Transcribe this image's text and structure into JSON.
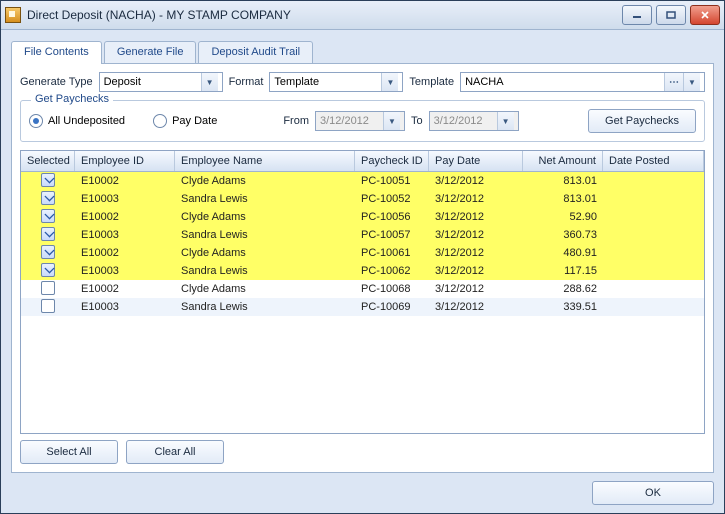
{
  "window": {
    "title": "Direct Deposit (NACHA) - MY STAMP COMPANY"
  },
  "tabs": [
    {
      "label": "File Contents",
      "active": true
    },
    {
      "label": "Generate File",
      "active": false
    },
    {
      "label": "Deposit Audit Trail",
      "active": false
    }
  ],
  "form": {
    "genTypeLabel": "Generate Type",
    "genTypeValue": "Deposit",
    "formatLabel": "Format",
    "formatValue": "Template",
    "templateLabel": "Template",
    "templateValue": "NACHA"
  },
  "group": {
    "legend": "Get Paychecks",
    "optAllUndeposited": "All Undeposited",
    "optPayDate": "Pay Date",
    "fromLabel": "From",
    "fromValue": "3/12/2012",
    "toLabel": "To",
    "toValue": "3/12/2012",
    "btn": "Get Paychecks",
    "selected": "all"
  },
  "columns": [
    "Selected",
    "Employee ID",
    "Employee Name",
    "Paycheck ID",
    "Pay Date",
    "Net Amount",
    "Date Posted"
  ],
  "rows": [
    {
      "sel": true,
      "hl": true,
      "emp": "E10002",
      "name": "Clyde Adams",
      "pc": "PC-10051",
      "date": "3/12/2012",
      "amt": "813.01",
      "posted": ""
    },
    {
      "sel": true,
      "hl": true,
      "emp": "E10003",
      "name": "Sandra Lewis",
      "pc": "PC-10052",
      "date": "3/12/2012",
      "amt": "813.01",
      "posted": ""
    },
    {
      "sel": true,
      "hl": true,
      "emp": "E10002",
      "name": "Clyde Adams",
      "pc": "PC-10056",
      "date": "3/12/2012",
      "amt": "52.90",
      "posted": ""
    },
    {
      "sel": true,
      "hl": true,
      "emp": "E10003",
      "name": "Sandra Lewis",
      "pc": "PC-10057",
      "date": "3/12/2012",
      "amt": "360.73",
      "posted": ""
    },
    {
      "sel": true,
      "hl": true,
      "emp": "E10002",
      "name": "Clyde Adams",
      "pc": "PC-10061",
      "date": "3/12/2012",
      "amt": "480.91",
      "posted": ""
    },
    {
      "sel": true,
      "hl": true,
      "emp": "E10003",
      "name": "Sandra Lewis",
      "pc": "PC-10062",
      "date": "3/12/2012",
      "amt": "117.15",
      "posted": ""
    },
    {
      "sel": false,
      "hl": false,
      "emp": "E10002",
      "name": "Clyde Adams",
      "pc": "PC-10068",
      "date": "3/12/2012",
      "amt": "288.62",
      "posted": ""
    },
    {
      "sel": false,
      "hl": false,
      "emp": "E10003",
      "name": "Sandra Lewis",
      "pc": "PC-10069",
      "date": "3/12/2012",
      "amt": "339.51",
      "posted": ""
    }
  ],
  "footer": {
    "selectAll": "Select All",
    "clearAll": "Clear All"
  },
  "ok": "OK",
  "colors": {
    "highlight": "#ffff66",
    "header_gradient_from": "#f6faff",
    "header_gradient_to": "#d6e2f2",
    "border": "#8ea4c4"
  }
}
